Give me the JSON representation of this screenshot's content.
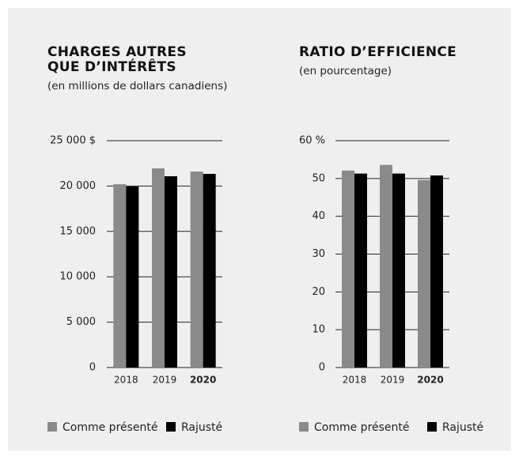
{
  "chart_data": [
    {
      "type": "bar",
      "title": "CHARGES AUTRES QUE D’INTÉRÊTS",
      "subtitle": "(en millions de dollars canadiens)",
      "categories": [
        "2018",
        "2019",
        "2020"
      ],
      "series": [
        {
          "name": "Comme présenté",
          "color": "#8a8a8a",
          "values": [
            20200,
            21950,
            21600
          ]
        },
        {
          "name": "Rajusté",
          "color": "#000000",
          "values": [
            19950,
            21080,
            21340
          ]
        }
      ],
      "ylim": [
        0,
        25000
      ],
      "yticks": [
        0,
        {
          "value": 5000,
          "label": "5 000"
        },
        {
          "value": 10000,
          "label": "10 000"
        },
        {
          "value": 15000,
          "label": "15 000"
        },
        {
          "value": 20000,
          "label": "20 000"
        },
        {
          "value": 25000,
          "label": "25 000 $"
        }
      ],
      "grid": true
    },
    {
      "type": "bar",
      "title": "RATIO D’EFFICIENCE",
      "subtitle": "(en pourcentage)",
      "categories": [
        "2018",
        "2019",
        "2020"
      ],
      "series": [
        {
          "name": "Comme présenté",
          "color": "#8a8a8a",
          "values": [
            52.1,
            53.6,
            49.6
          ]
        },
        {
          "name": "Rajusté",
          "color": "#000000",
          "values": [
            51.3,
            51.3,
            50.8
          ]
        }
      ],
      "ylim": [
        0,
        60
      ],
      "yticks": [
        0,
        10,
        20,
        30,
        40,
        50,
        {
          "value": 60,
          "label": "60 %"
        }
      ],
      "grid": true
    }
  ]
}
